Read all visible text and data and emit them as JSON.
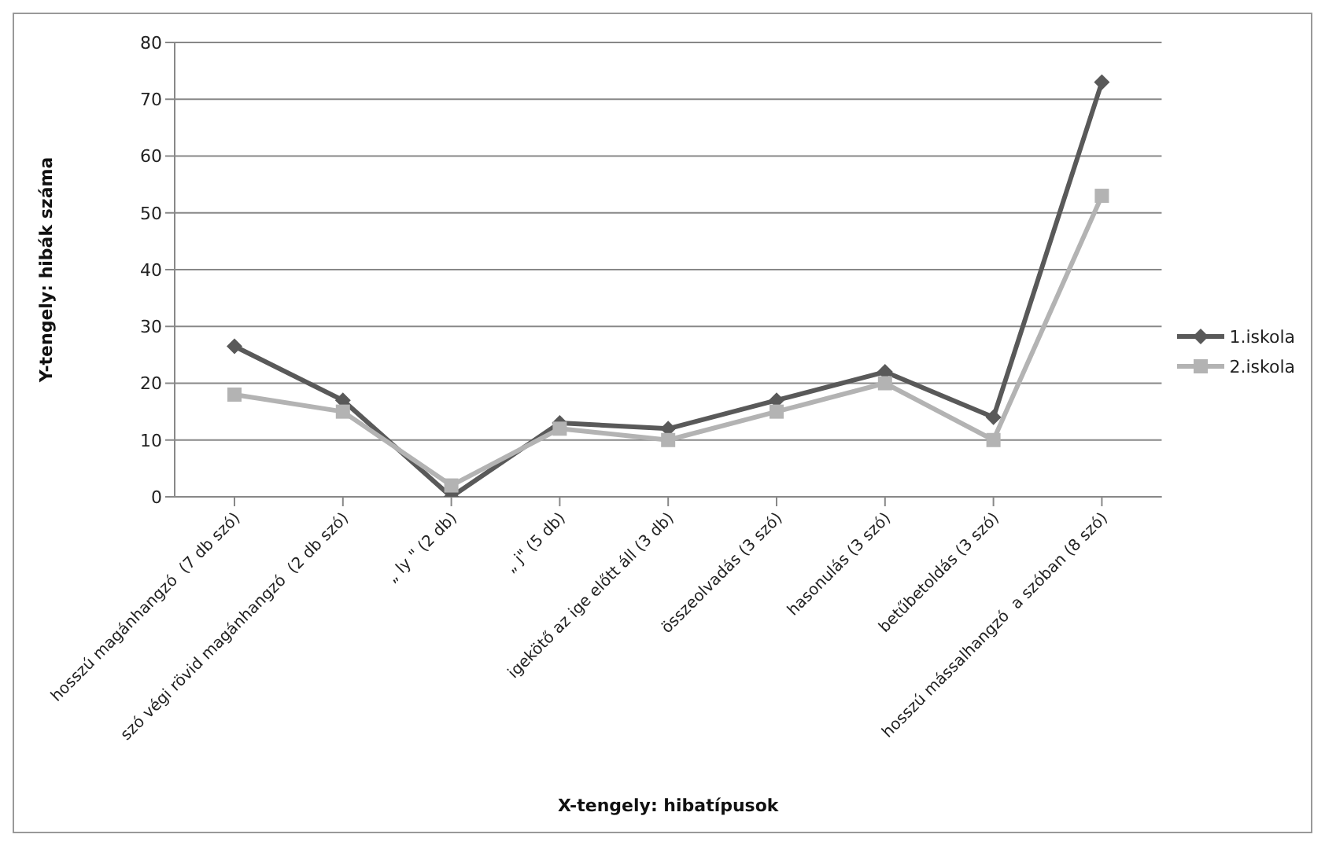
{
  "chart_data": {
    "type": "line",
    "xlabel": "X-tengely: hibatípusok",
    "ylabel": "Y-tengely: hibák száma",
    "categories": [
      "hosszú magánhangzó  (7 db szó)",
      "szó végi rövid magánhangzó  (2 db szó)",
      "„ ly \" (2 db)",
      "„ j\" (5 db)",
      "igekötő az ige előtt áll (3 db)",
      "összeolvadás (3 szó)",
      "hasonulás (3 szó)",
      "betűbetoldás (3 szó)",
      "hosszú mássalhangzó  a szóban (8 szó)"
    ],
    "series": [
      {
        "name": "1.iskola",
        "color": "#595959",
        "marker": "diamond",
        "values": [
          26.5,
          17,
          0,
          13,
          12,
          17,
          22,
          14,
          73
        ]
      },
      {
        "name": "2.iskola",
        "color": "#b3b3b3",
        "marker": "square",
        "values": [
          18,
          15,
          2,
          12,
          10,
          15,
          20,
          10,
          53
        ]
      }
    ],
    "ylim": [
      0,
      80
    ],
    "yticks": [
      0,
      10,
      20,
      30,
      40,
      50,
      60,
      70,
      80
    ],
    "grid": "y",
    "legend": "right"
  }
}
